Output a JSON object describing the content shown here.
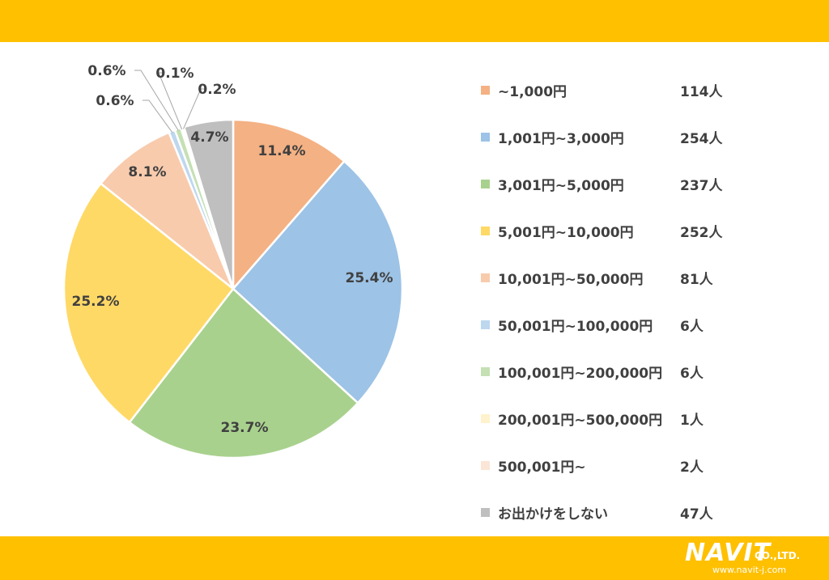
{
  "chart_data": {
    "type": "pie",
    "title": "",
    "legend_position": "right",
    "slices": [
      {
        "label": "~1,000円",
        "count": "114人",
        "percent": 11.4,
        "percent_label": "11.4%",
        "color": "#F4B183"
      },
      {
        "label": "1,001円~3,000円",
        "count": "254人",
        "percent": 25.4,
        "percent_label": "25.4%",
        "color": "#9DC3E6"
      },
      {
        "label": "3,001円~5,000円",
        "count": "237人",
        "percent": 23.7,
        "percent_label": "23.7%",
        "color": "#A9D18E"
      },
      {
        "label": "5,001円~10,000円",
        "count": "252人",
        "percent": 25.2,
        "percent_label": "25.2%",
        "color": "#FFD966"
      },
      {
        "label": "10,001円~50,000円",
        "count": "81人",
        "percent": 8.1,
        "percent_label": "8.1%",
        "color": "#F8CBAD"
      },
      {
        "label": "50,001円~100,000円",
        "count": "6人",
        "percent": 0.6,
        "percent_label": "0.6%",
        "color": "#BDD7EE"
      },
      {
        "label": "100,001円~200,000円",
        "count": "6人",
        "percent": 0.6,
        "percent_label": "0.6%",
        "color": "#C5E0B4"
      },
      {
        "label": "200,001円~500,000円",
        "count": "1人",
        "percent": 0.1,
        "percent_label": "0.1%",
        "color": "#FFF2CC"
      },
      {
        "label": "500,001円~",
        "count": "2人",
        "percent": 0.2,
        "percent_label": "0.2%",
        "color": "#FBE5D6"
      },
      {
        "label": "お出かけをしない",
        "count": "47人",
        "percent": 4.7,
        "percent_label": "4.7%",
        "color": "#BFBFBF"
      }
    ]
  },
  "brand": {
    "logo_text": "NAVIT",
    "company_suffix": "CO.,LTD.",
    "url": "www.navit-j.com",
    "band_color": "#FFC000"
  }
}
